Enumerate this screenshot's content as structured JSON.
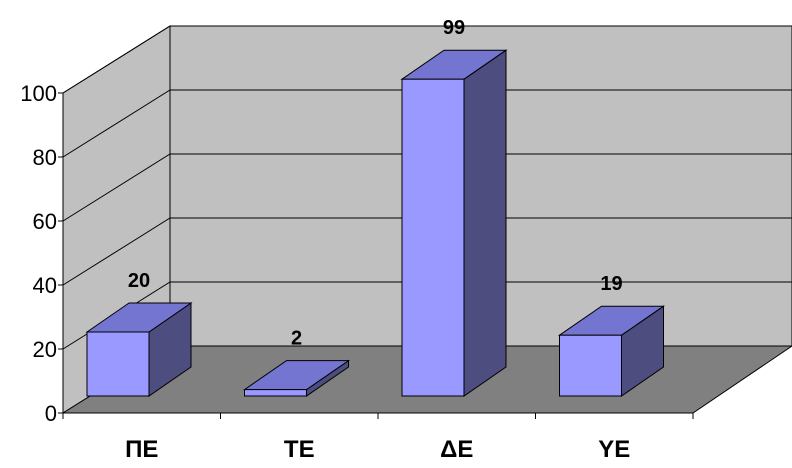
{
  "chart_data": {
    "type": "bar",
    "title": "",
    "xlabel": "",
    "ylabel": "",
    "categories": [
      "ΠΕ",
      "ΤΕ",
      "ΔΕ",
      "ΥΕ"
    ],
    "values": [
      20,
      2,
      99,
      19
    ],
    "data_labels": [
      "20",
      "2",
      "99",
      "19"
    ],
    "ylim": [
      0,
      100
    ],
    "yticks": [
      0,
      20,
      40,
      60,
      80,
      100
    ],
    "ytick_labels": [
      "0",
      "20",
      "40",
      "60",
      "80",
      "100"
    ],
    "grid": true,
    "three_d": true,
    "colors": {
      "bar_front": "#9999ff",
      "bar_top": "#7474d1",
      "bar_side": "#4d4d80",
      "wall": "#c0c0c0",
      "floor": "#808080",
      "gridline": "#000000"
    }
  }
}
